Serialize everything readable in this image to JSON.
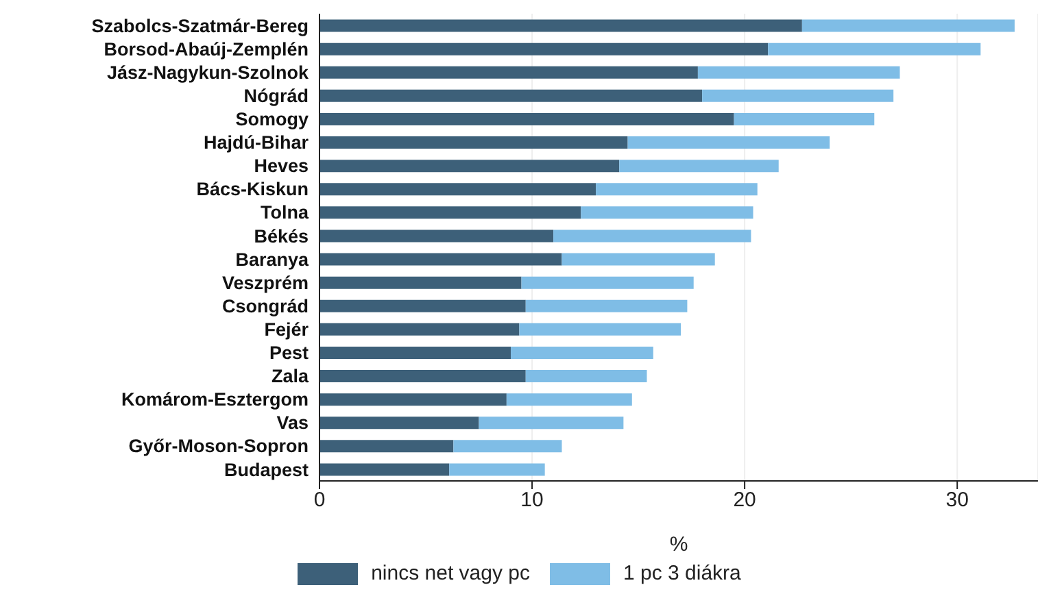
{
  "chart_data": {
    "type": "bar",
    "orientation": "horizontal",
    "stacked": true,
    "xlabel": "%",
    "categories": [
      "Szabolcs-Szatmár-Bereg",
      "Borsod-Abaúj-Zemplén",
      "Jász-Nagykun-Szolnok",
      "Nógrád",
      "Somogy",
      "Hajdú-Bihar",
      "Heves",
      "Bács-Kiskun",
      "Tolna",
      "Békés",
      "Baranya",
      "Veszprém",
      "Csongrád",
      "Fejér",
      "Pest",
      "Zala",
      "Komárom-Esztergom",
      "Vas",
      "Győr-Moson-Sopron",
      "Budapest"
    ],
    "series": [
      {
        "name": "nincs net vagy pc",
        "color": "#3d6079",
        "values": [
          22.7,
          21.1,
          17.8,
          18.0,
          19.5,
          14.5,
          14.1,
          13.0,
          12.3,
          11.0,
          11.4,
          9.5,
          9.7,
          9.4,
          9.0,
          9.7,
          8.8,
          7.5,
          6.3,
          6.1
        ]
      },
      {
        "name": "1 pc 3 diákra",
        "color": "#7fbde6",
        "values": [
          10.0,
          10.0,
          9.5,
          9.0,
          6.6,
          9.5,
          7.5,
          7.6,
          8.1,
          9.3,
          7.2,
          8.1,
          7.6,
          7.6,
          6.7,
          5.7,
          5.9,
          6.8,
          5.1,
          4.5
        ]
      }
    ],
    "xlim": [
      0,
      33.8
    ],
    "xticks": [
      0,
      10,
      20,
      30
    ],
    "grid": "x",
    "legend": "bottom"
  }
}
